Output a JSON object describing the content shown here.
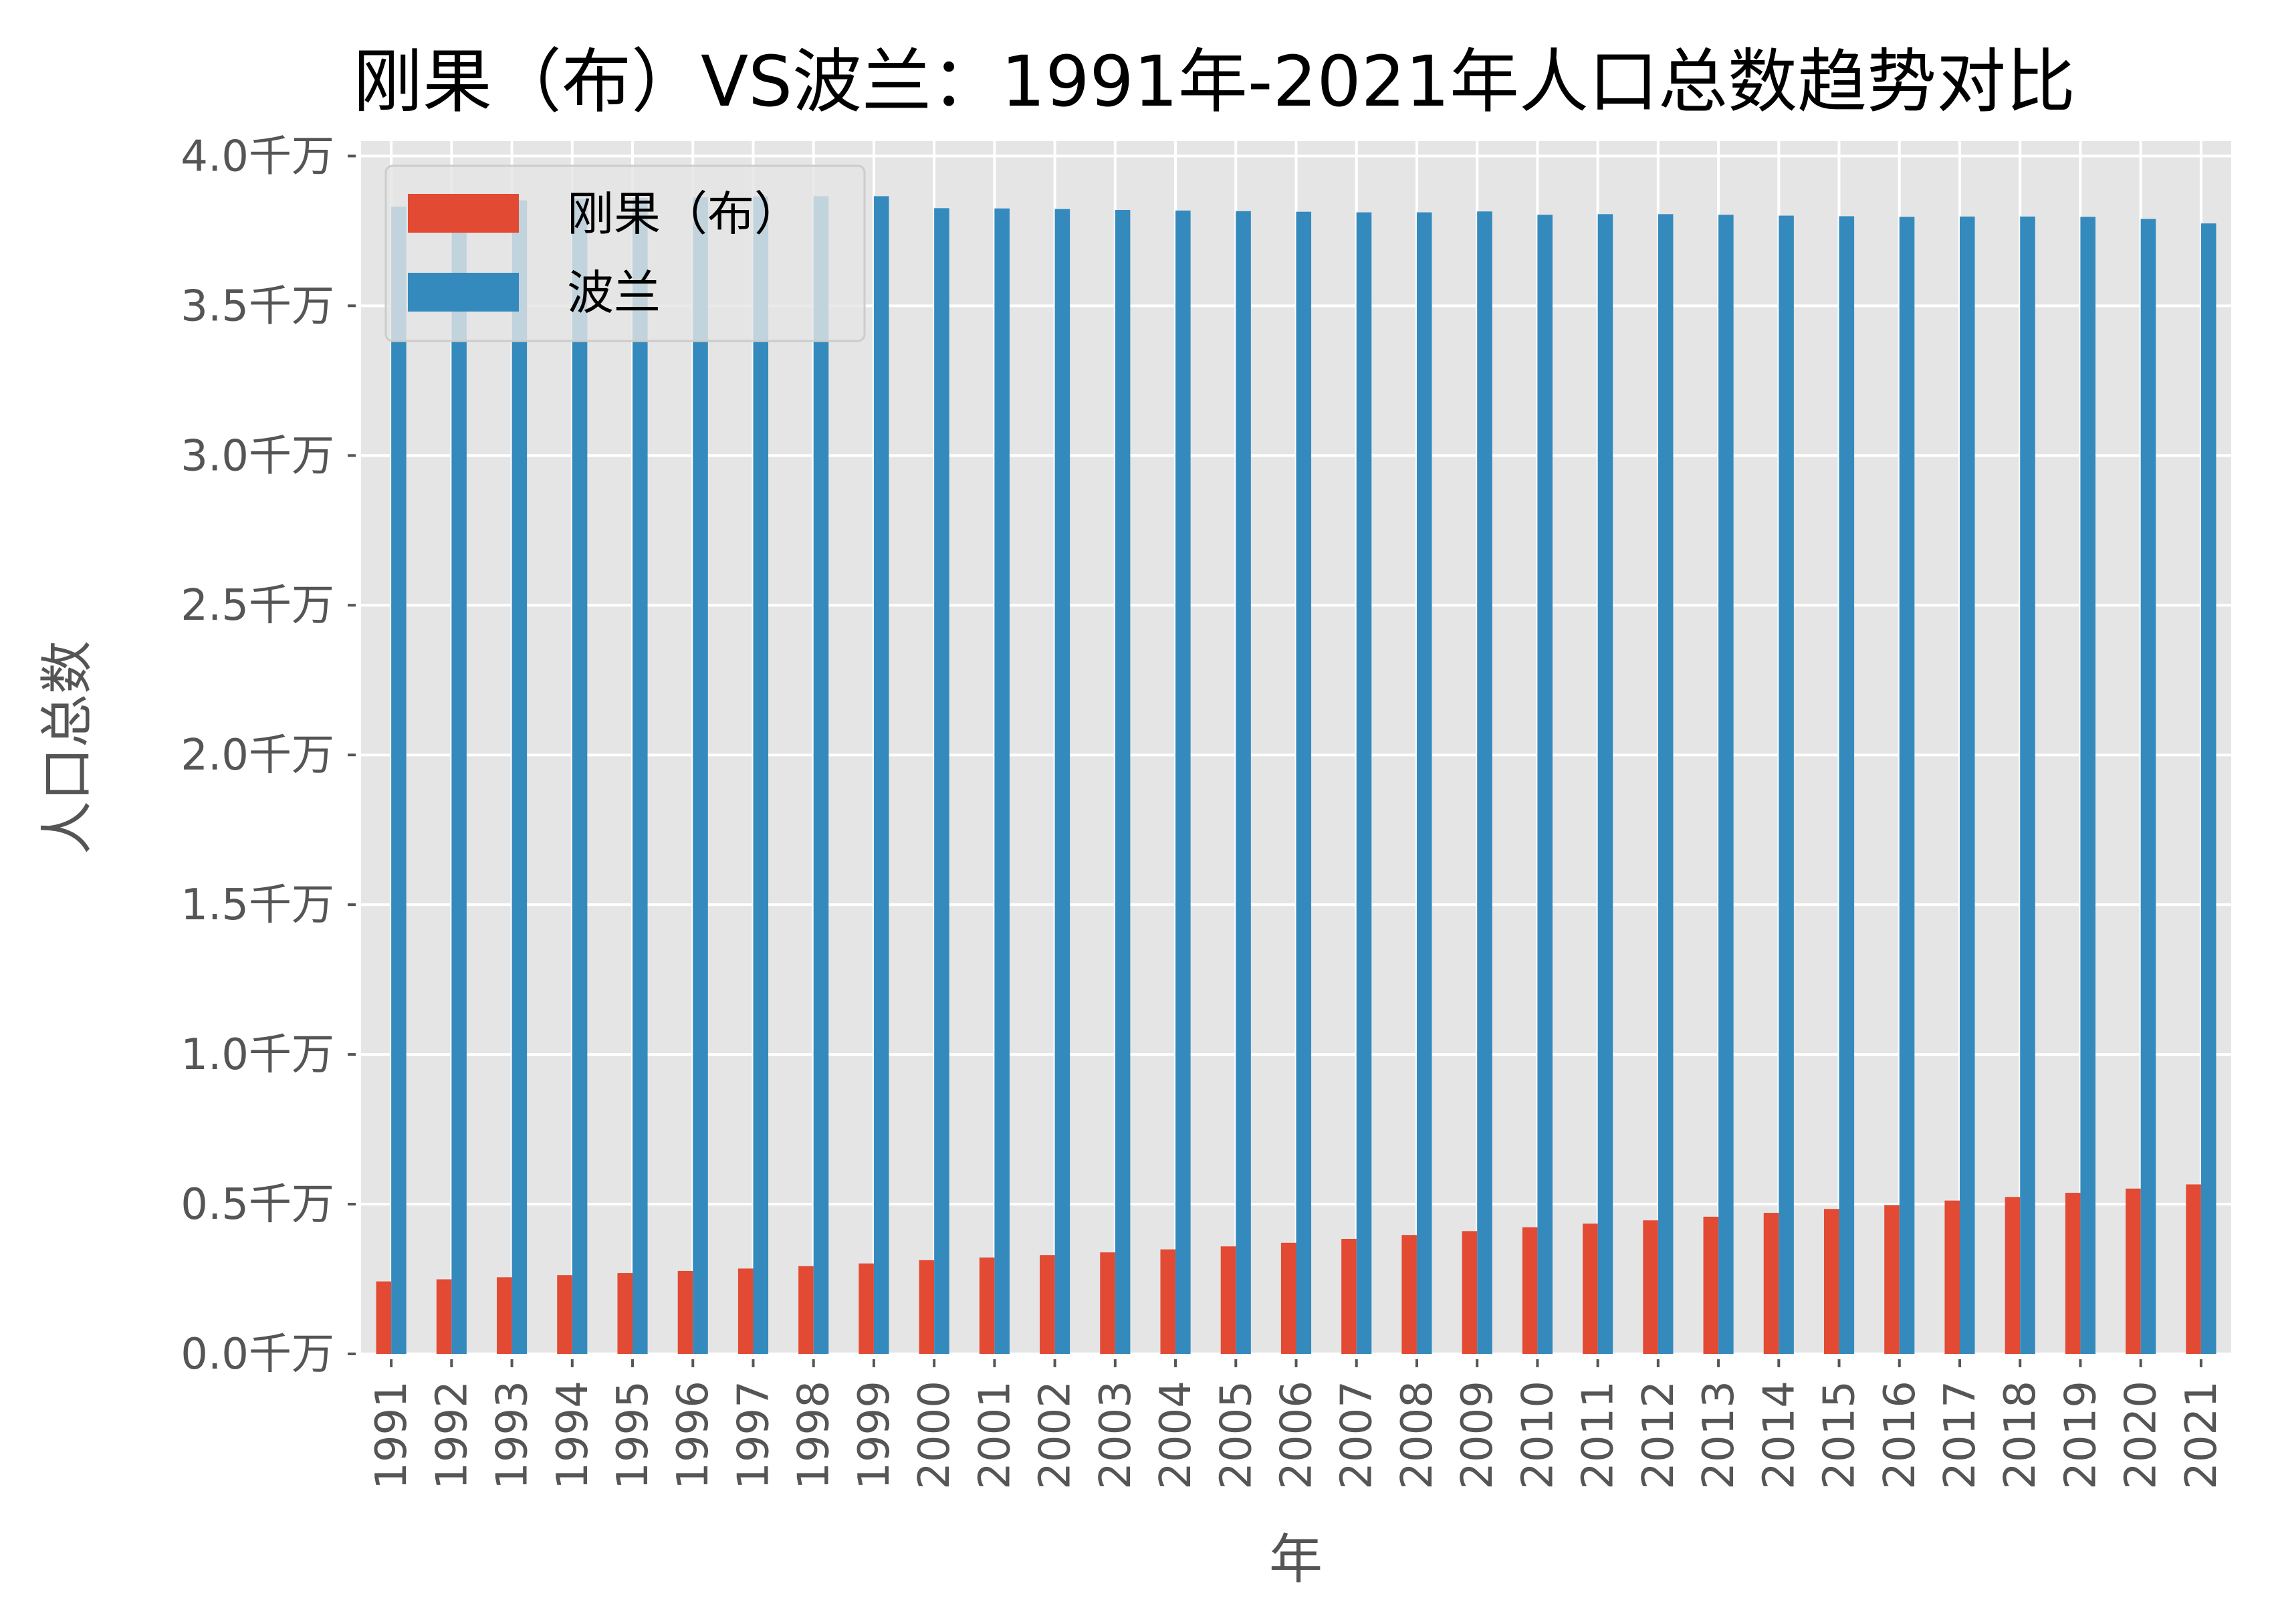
{
  "chart_data": {
    "type": "bar",
    "title": "刚果（布）VS波兰：1991年-2021年人口总数趋势对比",
    "xlabel": "年",
    "ylabel": "人口总数",
    "ylim": [
      0,
      4.05
    ],
    "yticks": [
      "0.0千万",
      "0.5千万",
      "1.0千万",
      "1.5千万",
      "2.0千万",
      "2.5千万",
      "3.0千万",
      "3.5千万",
      "4.0千万"
    ],
    "grid": true,
    "legend": "top-left",
    "categories": [
      "1991",
      "1992",
      "1993",
      "1994",
      "1995",
      "1996",
      "1997",
      "1998",
      "1999",
      "2000",
      "2001",
      "2002",
      "2003",
      "2004",
      "2005",
      "2006",
      "2007",
      "2008",
      "2009",
      "2010",
      "2011",
      "2012",
      "2013",
      "2014",
      "2015",
      "2016",
      "2017",
      "2018",
      "2019",
      "2020",
      "2021"
    ],
    "series": [
      {
        "name": "刚果（布）",
        "color": "#E24A33",
        "values": [
          0.242,
          0.249,
          0.256,
          0.263,
          0.27,
          0.277,
          0.285,
          0.293,
          0.302,
          0.313,
          0.322,
          0.33,
          0.339,
          0.349,
          0.359,
          0.371,
          0.384,
          0.397,
          0.41,
          0.423,
          0.435,
          0.446,
          0.458,
          0.471,
          0.484,
          0.497,
          0.512,
          0.524,
          0.538,
          0.552,
          0.566
        ]
      },
      {
        "name": "波兰",
        "color": "#348ABD",
        "values": [
          3.831,
          3.843,
          3.852,
          3.858,
          3.86,
          3.862,
          3.865,
          3.866,
          3.866,
          3.826,
          3.825,
          3.823,
          3.82,
          3.818,
          3.816,
          3.814,
          3.812,
          3.812,
          3.815,
          3.804,
          3.806,
          3.806,
          3.804,
          3.801,
          3.799,
          3.797,
          3.798,
          3.798,
          3.797,
          3.79,
          3.775
        ]
      }
    ]
  }
}
